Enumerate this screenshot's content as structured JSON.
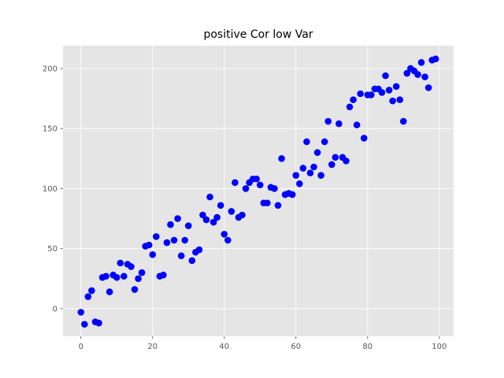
{
  "chart_data": {
    "type": "scatter",
    "title": "positive Cor low Var",
    "xlabel": "",
    "ylabel": "",
    "xlim": [
      -5,
      104
    ],
    "ylim": [
      -23,
      219
    ],
    "xticks": [
      0,
      20,
      40,
      60,
      80,
      100
    ],
    "yticks": [
      0,
      50,
      100,
      150,
      200
    ],
    "grid": true,
    "colors": {
      "marker": "#0000ff",
      "background": "#e5e5e5",
      "grid": "#ffffff"
    },
    "series": [
      {
        "x": [
          0,
          1,
          2,
          3,
          4,
          5,
          6,
          7,
          8,
          9,
          10,
          11,
          12,
          13,
          14,
          15,
          16,
          17,
          18,
          19,
          20,
          21,
          22,
          23,
          24,
          25,
          26,
          27,
          28,
          29,
          30,
          31,
          32,
          33,
          34,
          35,
          36,
          37,
          38,
          39,
          40,
          41,
          42,
          43,
          44,
          45,
          46,
          47,
          48,
          49,
          50,
          51,
          52,
          53,
          54,
          55,
          56,
          57,
          58,
          59,
          60,
          61,
          62,
          63,
          64,
          65,
          66,
          67,
          68,
          69,
          70,
          71,
          72,
          73,
          74,
          75,
          76,
          77,
          78,
          79,
          80,
          81,
          82,
          83,
          84,
          85,
          86,
          87,
          88,
          89,
          90,
          91,
          92,
          93,
          94,
          95,
          96,
          97,
          98,
          99
        ],
        "y": [
          -3,
          -13,
          10,
          15,
          -11,
          -12,
          26,
          27,
          14,
          28,
          26,
          38,
          27,
          37,
          35,
          16,
          25,
          30,
          52,
          53,
          45,
          60,
          27,
          28,
          55,
          70,
          57,
          75,
          44,
          57,
          69,
          40,
          47,
          49,
          78,
          74,
          93,
          72,
          76,
          86,
          62,
          57,
          81,
          105,
          76,
          78,
          100,
          105,
          108,
          108,
          103,
          88,
          88,
          101,
          100,
          86,
          125,
          95,
          96,
          95,
          111,
          104,
          117,
          139,
          113,
          118,
          130,
          111,
          139,
          156,
          120,
          126,
          154,
          126,
          123,
          168,
          174,
          153,
          179,
          142,
          178,
          178,
          183,
          183,
          180,
          194,
          182,
          173,
          185,
          174,
          156,
          196,
          200,
          198,
          195,
          205,
          193,
          184,
          207,
          208
        ]
      }
    ]
  }
}
